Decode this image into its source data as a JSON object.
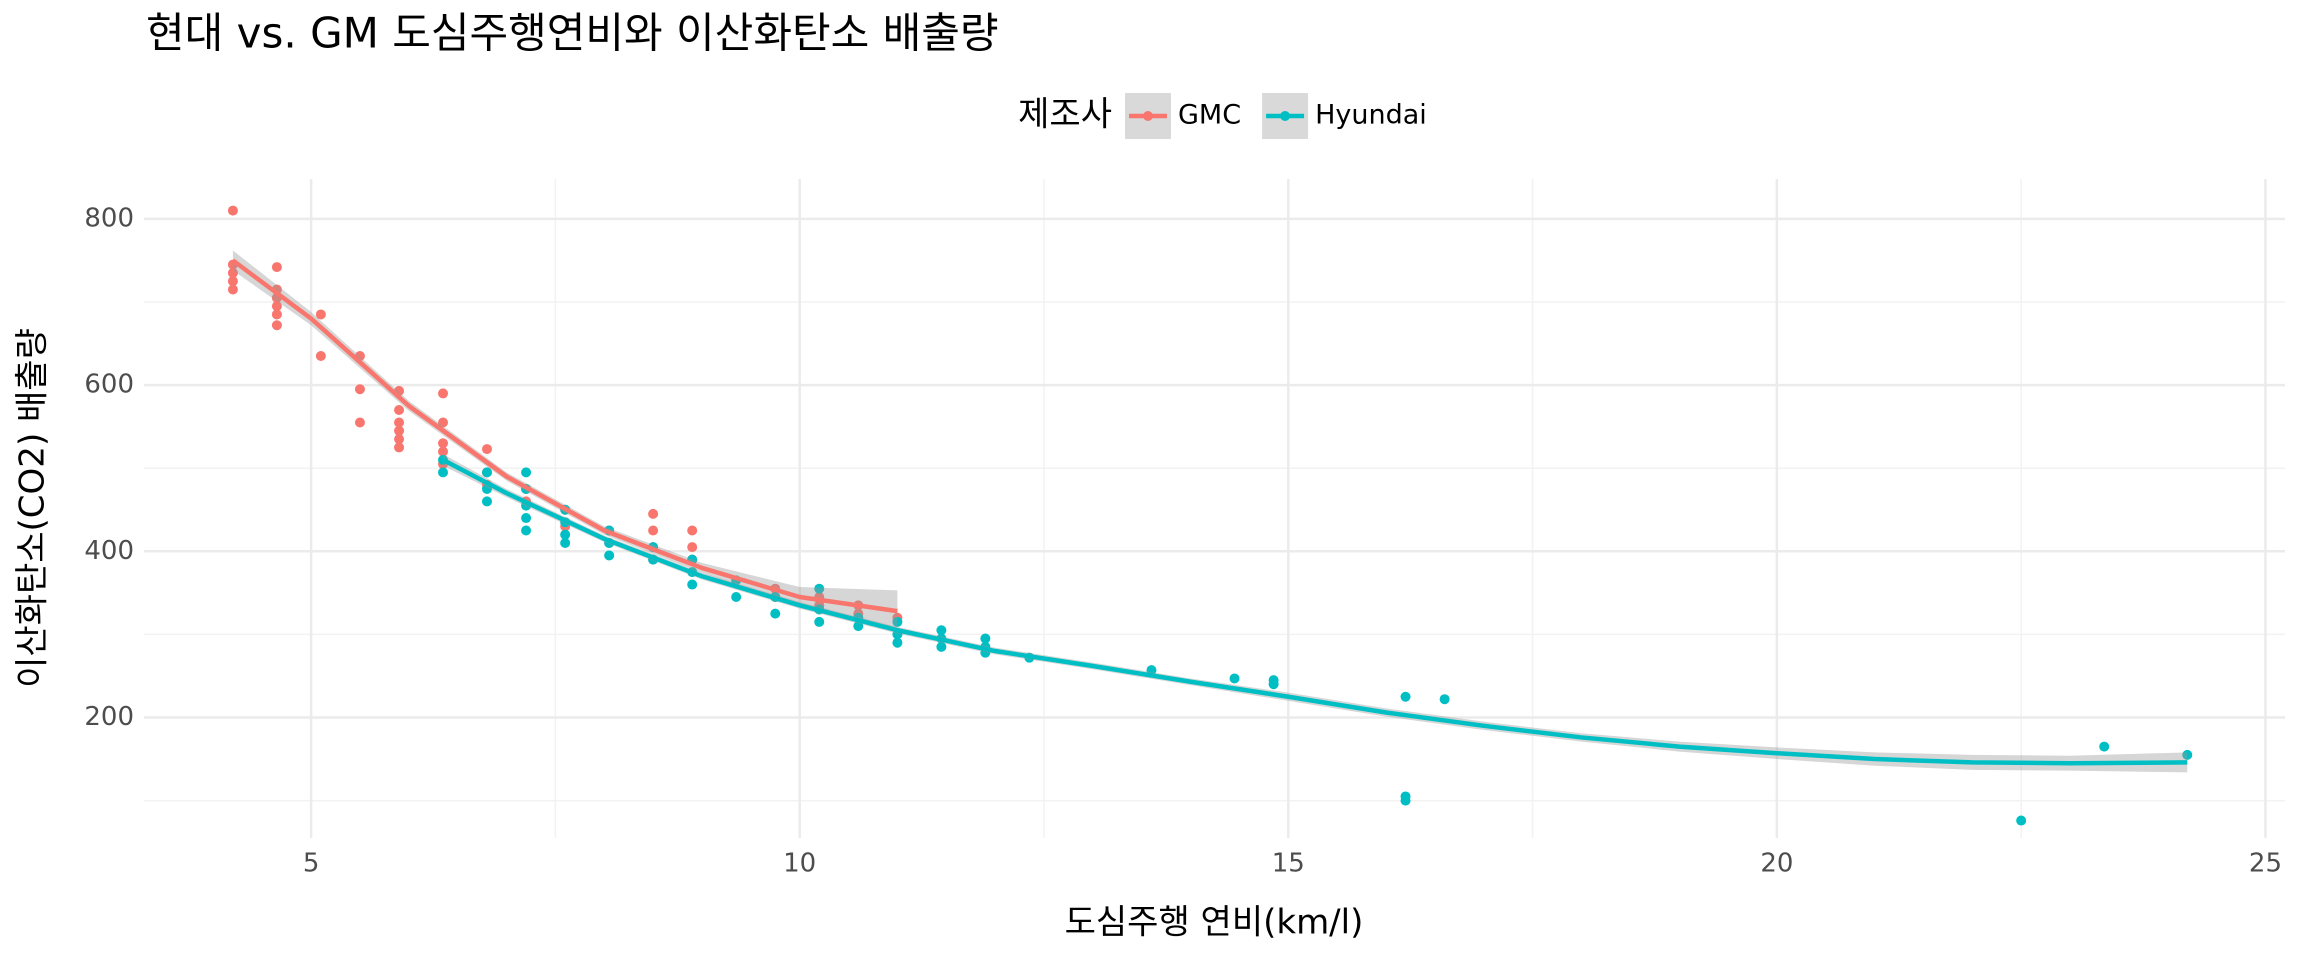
{
  "chart_data": {
    "type": "scatter",
    "title": "현대 vs. GM 도심주행연비와 이산화탄소 배출량",
    "x_label": "도심주행 연비(km/l)",
    "y_label": "이산화탄소(CO2) 배출량",
    "legend_title": "제조사",
    "legend_position": "top",
    "grid": true,
    "xlim": [
      3.29,
      25.2
    ],
    "ylim": [
      55,
      848
    ],
    "xticks": [
      5,
      10,
      15,
      20,
      25
    ],
    "yticks": [
      200,
      400,
      600,
      800
    ],
    "xminor_ticks": [
      7.5,
      12.5,
      17.5,
      22.5
    ],
    "yminor_ticks": [
      100,
      300,
      500,
      700
    ],
    "ribbon_color": "#999999",
    "series": [
      {
        "name": "GMC",
        "color": "#F8766D",
        "x": [
          4.2,
          4.2,
          4.2,
          4.2,
          4.2,
          4.65,
          4.65,
          4.65,
          4.65,
          4.65,
          4.65,
          5.1,
          5.1,
          5.5,
          5.5,
          5.5,
          5.9,
          5.9,
          5.9,
          5.9,
          5.9,
          5.9,
          6.35,
          6.35,
          6.35,
          6.35,
          6.35,
          6.8,
          6.8,
          6.8,
          7.2,
          7.2,
          7.6,
          7.6,
          8.05,
          8.05,
          8.5,
          8.5,
          8.5,
          8.5,
          8.9,
          8.9,
          8.9,
          9.75,
          9.75,
          10.2,
          10.2,
          10.6,
          10.6,
          11.0
        ],
        "y": [
          810,
          745,
          735,
          725,
          715,
          742,
          715,
          705,
          695,
          685,
          672,
          685,
          635,
          635,
          595,
          555,
          593,
          570,
          555,
          545,
          535,
          525,
          590,
          555,
          530,
          520,
          505,
          523,
          495,
          480,
          475,
          460,
          450,
          430,
          425,
          410,
          445,
          425,
          405,
          390,
          425,
          405,
          390,
          355,
          345,
          345,
          335,
          335,
          325,
          320
        ],
        "fit_x": [
          4.2,
          5,
          6,
          7,
          8,
          9,
          10,
          11
        ],
        "fit_y": [
          750,
          680,
          575,
          490,
          425,
          380,
          345,
          328
        ],
        "fit_lo": [
          738,
          672,
          569,
          485,
          420,
          374,
          333,
          303
        ],
        "fit_hi": [
          762,
          688,
          581,
          495,
          430,
          386,
          357,
          353
        ]
      },
      {
        "name": "Hyundai",
        "color": "#00BFC4",
        "x": [
          6.35,
          6.35,
          6.8,
          6.8,
          6.8,
          7.2,
          7.2,
          7.2,
          7.2,
          7.2,
          7.6,
          7.6,
          7.6,
          7.6,
          8.05,
          8.05,
          8.05,
          8.5,
          8.5,
          8.9,
          8.9,
          8.9,
          9.35,
          9.35,
          9.75,
          9.75,
          10.2,
          10.2,
          10.2,
          10.6,
          10.6,
          11.0,
          11.0,
          11.0,
          11.45,
          11.45,
          11.45,
          11.9,
          11.9,
          11.9,
          12.35,
          13.6,
          14.45,
          14.85,
          14.85,
          16.2,
          16.2,
          16.2,
          16.6,
          22.5,
          23.35,
          24.2
        ],
        "y": [
          510,
          495,
          495,
          475,
          460,
          495,
          475,
          455,
          440,
          425,
          450,
          435,
          420,
          410,
          425,
          410,
          395,
          405,
          390,
          390,
          375,
          360,
          365,
          345,
          345,
          325,
          355,
          330,
          315,
          320,
          310,
          315,
          300,
          290,
          305,
          295,
          285,
          295,
          285,
          278,
          272,
          257,
          247,
          245,
          240,
          225,
          105,
          100,
          222,
          76,
          165,
          155
        ],
        "fit_x": [
          6.35,
          7,
          8,
          9,
          10,
          11,
          12,
          13,
          14,
          15,
          16,
          17,
          18,
          19,
          20,
          21,
          22,
          23,
          24.2
        ],
        "fit_y": [
          510,
          470,
          415,
          370,
          335,
          305,
          280,
          262,
          243,
          225,
          206,
          190,
          176,
          165,
          157,
          150,
          146,
          145,
          146
        ],
        "fit_lo": [
          503,
          465,
          411,
          366,
          331,
          301,
          276,
          258,
          239,
          220,
          201,
          185,
          171,
          159,
          150,
          142,
          137,
          136,
          134
        ],
        "fit_hi": [
          517,
          475,
          419,
          374,
          339,
          309,
          284,
          266,
          247,
          230,
          211,
          195,
          181,
          171,
          164,
          158,
          155,
          154,
          158
        ]
      }
    ]
  }
}
